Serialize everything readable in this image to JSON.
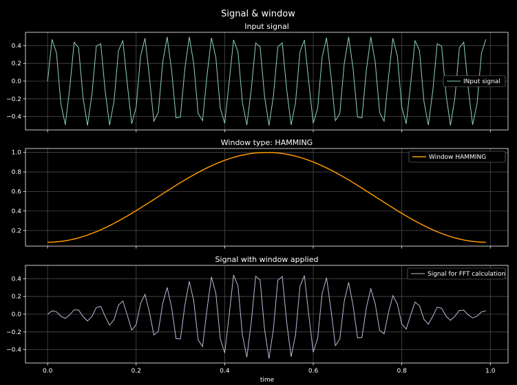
{
  "figure": {
    "title": "Signal & window",
    "xlabel": "time"
  },
  "colors": {
    "background": "#000000",
    "grid": "#4d4d4d",
    "axes": "#ffffff",
    "series": [
      "#8dd3c7",
      "#ff9900",
      "#bebada"
    ]
  },
  "chart_data": [
    {
      "type": "line",
      "title": "Input signal",
      "legend": "INput signal",
      "legend_position": "center-right",
      "color": "#8dd3c7",
      "x": {
        "start": 0.0,
        "step": 0.01,
        "count": 100
      },
      "signal": {
        "amplitude": 0.5,
        "cycles_per_unit": 19.5
      },
      "ylim": [
        -0.55,
        0.55
      ],
      "yticks": [
        "0.4",
        "0.2",
        "0.0",
        "−0.2",
        "−0.4"
      ],
      "ytick_values": [
        0.4,
        0.2,
        0.0,
        -0.2,
        -0.4
      ],
      "grid": true
    },
    {
      "type": "line",
      "title": "Window type: HAMMING",
      "legend": "Window HAMMING",
      "legend_position": "top-right",
      "color": "#ff9900",
      "x": {
        "start": 0.0,
        "step": 0.01,
        "count": 100
      },
      "window": {
        "name": "hamming",
        "min": 0.08,
        "max": 1.0
      },
      "ylim": [
        0.04,
        1.04
      ],
      "yticks": [
        "1.0",
        "0.8",
        "0.6",
        "0.4",
        "0.2"
      ],
      "ytick_values": [
        1.0,
        0.8,
        0.6,
        0.4,
        0.2
      ],
      "grid": true
    },
    {
      "type": "line",
      "title": "Signal with window applied",
      "legend": "Signal for FFT calculation",
      "legend_position": "top-right",
      "color": "#bebada",
      "x": {
        "start": 0.0,
        "step": 0.01,
        "count": 100
      },
      "ylim": [
        -0.55,
        0.55
      ],
      "yticks": [
        "0.4",
        "0.2",
        "0.0",
        "−0.2",
        "−0.4"
      ],
      "ytick_values": [
        0.4,
        0.2,
        0.0,
        -0.2,
        -0.4
      ],
      "grid": true
    }
  ],
  "xticks": [
    "0.0",
    "0.2",
    "0.4",
    "0.6",
    "0.8",
    "1.0"
  ],
  "xtick_values": [
    0.0,
    0.2,
    0.4,
    0.6,
    0.8,
    1.0
  ],
  "xlim": [
    -0.05,
    1.04
  ]
}
